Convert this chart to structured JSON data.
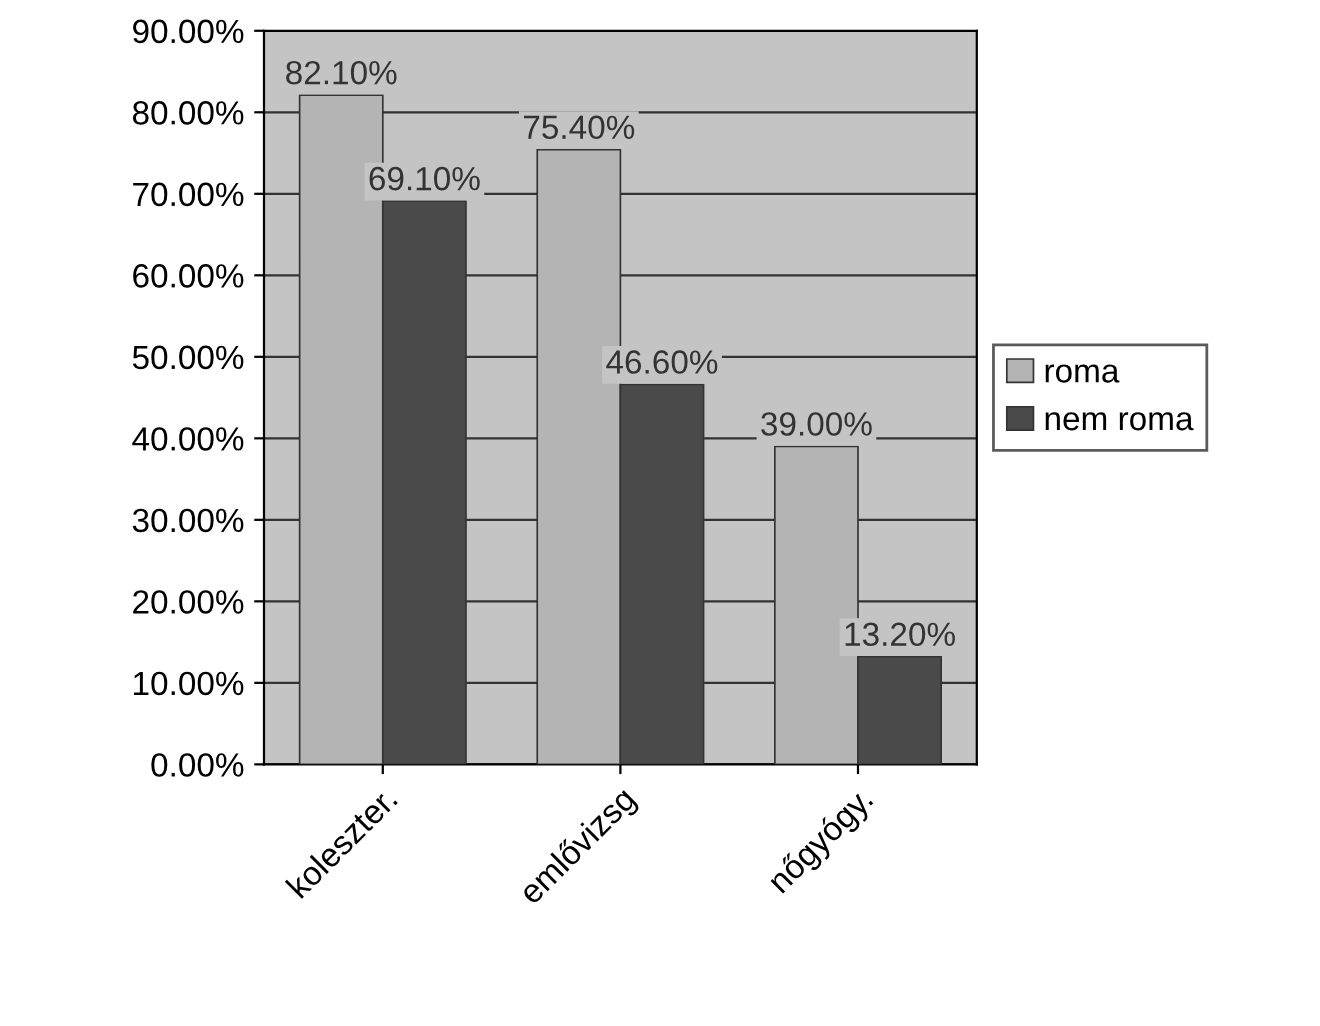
{
  "chart_data": {
    "type": "bar",
    "categories": [
      "koleszter.",
      "emlővizsg",
      "nőgyógy."
    ],
    "series": [
      {
        "name": "roma",
        "color": "#b4b4b4",
        "values": [
          82.1,
          75.4,
          39.0
        ],
        "value_labels": [
          "82.10%",
          "75.40%",
          "39.00%"
        ]
      },
      {
        "name": "nem roma",
        "color": "#4a4a4a",
        "values": [
          69.1,
          46.6,
          13.2
        ],
        "value_labels": [
          "69.10%",
          "46.60%",
          "13.20%"
        ]
      }
    ],
    "ylim": [
      0,
      90
    ],
    "yticks": [
      {
        "value": 0,
        "label": "0.00%"
      },
      {
        "value": 10,
        "label": "10.00%"
      },
      {
        "value": 20,
        "label": "20.00%"
      },
      {
        "value": 30,
        "label": "30.00%"
      },
      {
        "value": 40,
        "label": "40.00%"
      },
      {
        "value": 50,
        "label": "50.00%"
      },
      {
        "value": 60,
        "label": "60.00%"
      },
      {
        "value": 70,
        "label": "70.00%"
      },
      {
        "value": 80,
        "label": "80.00%"
      },
      {
        "value": 90,
        "label": "90.00%"
      }
    ],
    "grid": "y",
    "legend": "right"
  }
}
